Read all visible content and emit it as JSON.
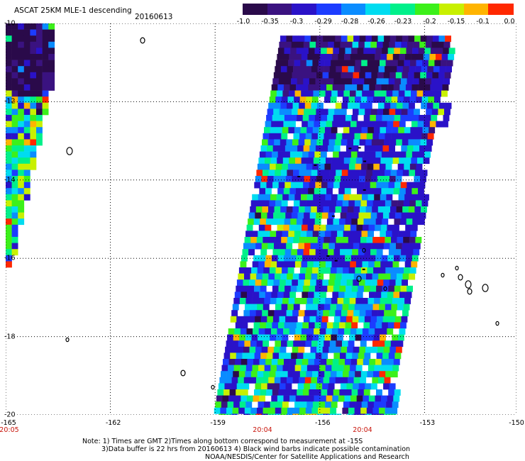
{
  "header": {
    "title": "ASCAT 25KM MLE-1 descending",
    "date": "20160613"
  },
  "colorbar": {
    "labels": [
      "-1.0",
      "-0.35",
      "-0.3",
      "-0.29",
      "-0.28",
      "-0.26",
      "-0.23",
      "-0.2",
      "-0.15",
      "-0.1",
      "0.0"
    ],
    "colors": [
      "#2a0a4a",
      "#3a1280",
      "#2a12c8",
      "#1c3cff",
      "#0a8cff",
      "#00dcf0",
      "#00f08a",
      "#3cf01a",
      "#c8f000",
      "#ffb400",
      "#ff2800"
    ]
  },
  "axes": {
    "lat_labels": [
      "-10",
      "-12",
      "-14",
      "-16",
      "-18",
      "-20"
    ],
    "lon_labels": [
      "-165",
      "-162",
      "-159",
      "-156",
      "-153",
      "-150"
    ],
    "lon_range": [
      -165,
      -150
    ],
    "lat_range": [
      -10,
      -20
    ]
  },
  "times": [
    "20:05",
    "20:04",
    "20:04"
  ],
  "notes": [
    "Note: 1) Times are GMT 2)Times along bottom correspond to measurement at -15S",
    "3)Data buffer is 22 hrs from 20160613 4) Black wind barbs indicate possible contamination",
    "NOAA/NESDIS/Center for Satellite Applications and Research"
  ]
}
